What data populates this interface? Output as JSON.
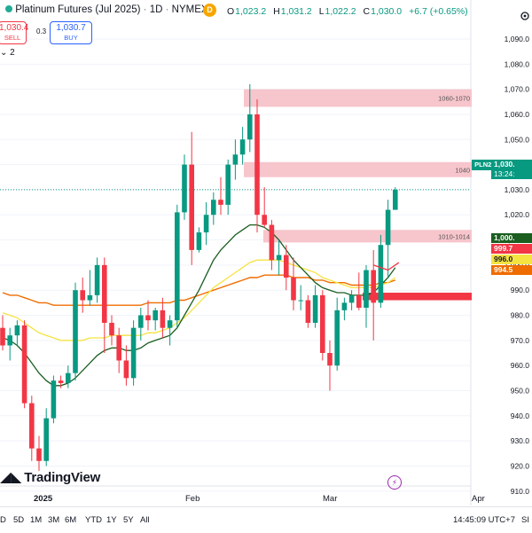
{
  "header": {
    "symbol_title": "Platinum Futures (Jul 2025)",
    "interval": "1D",
    "exchange": "NYMEX",
    "badge": "D",
    "ohlc": [
      {
        "k": "O",
        "v": "1,023.2"
      },
      {
        "k": "H",
        "v": "1,031.2"
      },
      {
        "k": "L",
        "v": "1,022.2"
      },
      {
        "k": "C",
        "v": "1,030.0"
      }
    ],
    "change": "+6.7 (+0.65%)"
  },
  "trade": {
    "sell_price": "1,030.4",
    "sell_label": "SELL",
    "spread": "0.3",
    "buy_price": "1,030.7",
    "buy_label": "BUY"
  },
  "indicator_label": "2",
  "zones": [
    {
      "label": "1060-1070",
      "low": 1063,
      "high": 1070
    },
    {
      "label": "1040",
      "low": 1035,
      "high": 1041
    },
    {
      "label": "1010-1014",
      "low": 1009,
      "high": 1014
    },
    {
      "label": "",
      "low": 986,
      "high": 989,
      "color": "#f23645"
    }
  ],
  "price_axis": {
    "ticks": [
      "1,090.0",
      "1,080.0",
      "1,070.0",
      "1,060.0",
      "1,050.0",
      "1,040.0",
      "1,030.0",
      "1,020.0",
      "1,010.0",
      "1,000.0",
      "990.0",
      "980.0",
      "970.0",
      "960.0",
      "950.0",
      "940.0",
      "930.0",
      "920.0",
      "910.0"
    ],
    "values": [
      1090,
      1080,
      1070,
      1060,
      1050,
      1040,
      1030,
      1020,
      1010,
      1000,
      990,
      980,
      970,
      960,
      950,
      940,
      930,
      920,
      910
    ]
  },
  "price_tags": {
    "symbol": "PLN2025",
    "last": "1,030.",
    "countdown": "13:24:",
    "t1": "1,000.",
    "t2": "999.7",
    "t3": "996.0",
    "t4": "994.5"
  },
  "time_axis": {
    "labels": [
      {
        "text": "2025",
        "day": 3
      },
      {
        "text": "Feb",
        "day": 25
      },
      {
        "text": "Mar",
        "day": 45
      },
      {
        "text": "Apr",
        "day": 68
      }
    ]
  },
  "logo_text": "TradingView",
  "bottom": {
    "timeframes": [
      "D",
      "5D",
      "1M",
      "3M",
      "6M",
      "YTD",
      "1Y",
      "5Y",
      "All"
    ],
    "clock": "14:45:09 UTC+7",
    "right_cut": "SI"
  },
  "chart_data": {
    "type": "candlestick",
    "ylim": [
      906,
      1094
    ],
    "series": [
      {
        "name": "candles",
        "values": [
          [
            975,
            980,
            966,
            968
          ],
          [
            968,
            975,
            962,
            972
          ],
          [
            972,
            978,
            968,
            976
          ],
          [
            976,
            978,
            943,
            945
          ],
          [
            945,
            948,
            922,
            927
          ],
          [
            927,
            932,
            918,
            922
          ],
          [
            922,
            943,
            920,
            939
          ],
          [
            939,
            956,
            937,
            954
          ],
          [
            954,
            956,
            951,
            953
          ],
          [
            953,
            960,
            951,
            957
          ],
          [
            957,
            993,
            954,
            990
          ],
          [
            990,
            995,
            981,
            986
          ],
          [
            986,
            998,
            984,
            988
          ],
          [
            988,
            1003,
            985,
            1000
          ],
          [
            1000,
            1003,
            965,
            977
          ],
          [
            977,
            980,
            968,
            972
          ],
          [
            972,
            975,
            957,
            962
          ],
          [
            962,
            968,
            952,
            955
          ],
          [
            955,
            978,
            952,
            975
          ],
          [
            975,
            983,
            970,
            980
          ],
          [
            980,
            986,
            974,
            978
          ],
          [
            978,
            983,
            974,
            982
          ],
          [
            982,
            987,
            971,
            975
          ],
          [
            975,
            980,
            968,
            978
          ],
          [
            978,
            1024,
            975,
            1021
          ],
          [
            1021,
            1044,
            1018,
            1040
          ],
          [
            1040,
            1053,
            1000,
            1006
          ],
          [
            1006,
            1015,
            1005,
            1013
          ],
          [
            1013,
            1025,
            1008,
            1020
          ],
          [
            1020,
            1029,
            1016,
            1026
          ],
          [
            1026,
            1035,
            1020,
            1024
          ],
          [
            1024,
            1042,
            1020,
            1040
          ],
          [
            1040,
            1050,
            1034,
            1044
          ],
          [
            1044,
            1055,
            1040,
            1050
          ],
          [
            1050,
            1072,
            1045,
            1060
          ],
          [
            1060,
            1066,
            1013,
            1020
          ],
          [
            1020,
            1031,
            1015,
            1016
          ],
          [
            1016,
            1018,
            998,
            1002
          ],
          [
            1002,
            1010,
            996,
            1004
          ],
          [
            1004,
            1008,
            990,
            995
          ],
          [
            995,
            1003,
            982,
            986
          ],
          [
            986,
            992,
            982,
            986
          ],
          [
            986,
            988,
            975,
            977
          ],
          [
            977,
            992,
            975,
            988
          ],
          [
            988,
            990,
            962,
            965
          ],
          [
            965,
            970,
            950,
            960
          ],
          [
            960,
            987,
            958,
            982
          ],
          [
            982,
            987,
            978,
            985
          ],
          [
            985,
            990,
            982,
            988
          ],
          [
            988,
            997,
            982,
            983
          ],
          [
            983,
            1000,
            975,
            998
          ],
          [
            998,
            1006,
            970,
            985
          ],
          [
            985,
            1012,
            983,
            1008
          ],
          [
            1008,
            1026,
            995,
            1022
          ],
          [
            1022,
            1031,
            1022,
            1030
          ]
        ]
      },
      {
        "name": "ma-green",
        "values": [
          971,
          970,
          968,
          965,
          961,
          957,
          954,
          952,
          952,
          953,
          955,
          958,
          961,
          964,
          966,
          967,
          967,
          966,
          966,
          967,
          969,
          970,
          971,
          972,
          975,
          980,
          985,
          990,
          996,
          1002,
          1006,
          1009,
          1012,
          1014,
          1016,
          1016,
          1015,
          1013,
          1010,
          1006,
          1002,
          999,
          996,
          993,
          991,
          990,
          989,
          989,
          988,
          988,
          988,
          989,
          992,
          995,
          999
        ]
      },
      {
        "name": "ma-yellow",
        "values": [
          981,
          980,
          979,
          977,
          975,
          973,
          972,
          971,
          970,
          970,
          970,
          970,
          971,
          971,
          971,
          972,
          972,
          972,
          972,
          972,
          973,
          973,
          974,
          975,
          977,
          979,
          982,
          985,
          988,
          991,
          993,
          995,
          997,
          999,
          1001,
          1002,
          1002,
          1002,
          1002,
          1001,
          1000,
          999,
          998,
          997,
          995,
          994,
          993,
          992,
          991,
          991,
          991,
          991,
          992,
          993,
          995
        ]
      },
      {
        "name": "ma-orange",
        "values": [
          989,
          988,
          988,
          987,
          986,
          985,
          985,
          984,
          984,
          984,
          984,
          984,
          984,
          984,
          984,
          984,
          984,
          984,
          984,
          984,
          985,
          985,
          985,
          985,
          986,
          986,
          987,
          988,
          989,
          990,
          991,
          992,
          993,
          994,
          995,
          995,
          996,
          996,
          996,
          996,
          995,
          995,
          995,
          994,
          994,
          993,
          993,
          993,
          992,
          992,
          992,
          992,
          993,
          993,
          994
        ]
      }
    ]
  },
  "colors": {
    "up": "#089981",
    "down": "#f23645",
    "zone": "#f7c5cc",
    "ma_green": "#1b5e20",
    "ma_yellow": "#f5e342",
    "ma_orange": "#ef6c00",
    "grid": "#f0f3fa"
  }
}
